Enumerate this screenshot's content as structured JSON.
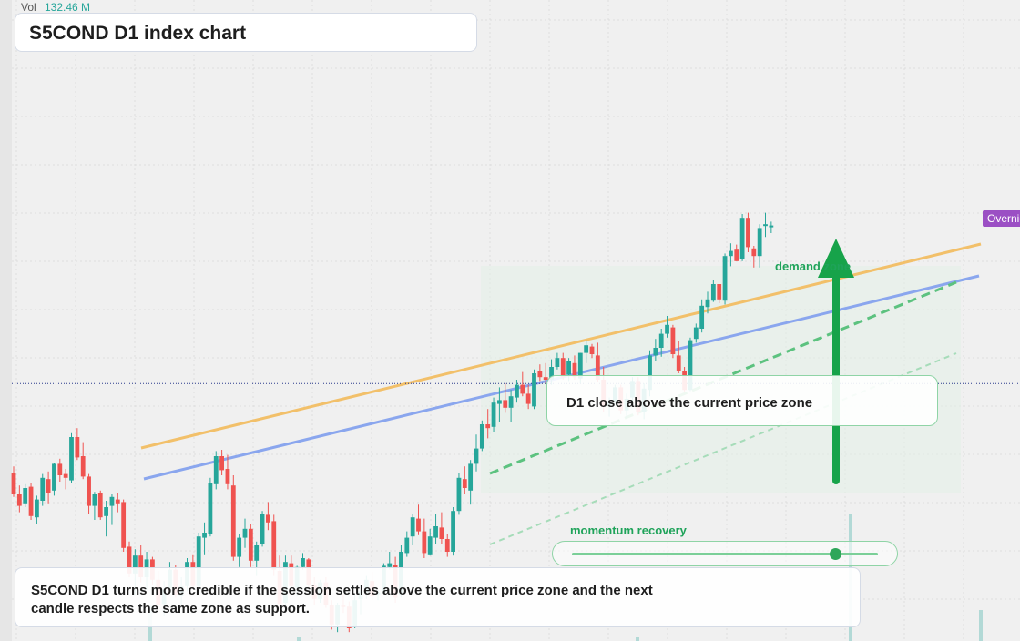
{
  "volume": {
    "label": "Vol",
    "value": "132.46 M"
  },
  "title": "S5COND D1 index chart",
  "callout": {
    "text": "D1 close above the current price zone"
  },
  "demand_label": "demand zone",
  "momentum": {
    "label": "momentum recovery",
    "level": 0.86
  },
  "bottom_note": "S5COND D1 turns more credible if the session settles above the current price zone and the next candle respects the same zone as support.",
  "price_tag": "Overnight",
  "colors": {
    "up": "#26a69a",
    "down": "#ef5350",
    "orange_line": "#f2c06a",
    "blue_line": "#8aa6ee",
    "green_accent": "#1fa35a",
    "tag": "#9b4fc4",
    "overnight_line": "#2b3a8c"
  },
  "chart_data": {
    "type": "candlestick",
    "series": "S5COND",
    "timeframe": "D1",
    "current_price_level": 457,
    "grid": true,
    "candles": [
      [
        387,
        392,
        368,
        370
      ],
      [
        370,
        377,
        356,
        361
      ],
      [
        363,
        378,
        360,
        375
      ],
      [
        376,
        379,
        350,
        353
      ],
      [
        352,
        369,
        347,
        366
      ],
      [
        365,
        386,
        361,
        383
      ],
      [
        382,
        388,
        363,
        371
      ],
      [
        373,
        395,
        369,
        394
      ],
      [
        394,
        398,
        380,
        385
      ],
      [
        386,
        390,
        374,
        383
      ],
      [
        381,
        418,
        379,
        415
      ],
      [
        415,
        422,
        397,
        399
      ],
      [
        400,
        411,
        382,
        384
      ],
      [
        384,
        386,
        355,
        361
      ],
      [
        361,
        372,
        350,
        370
      ],
      [
        371,
        373,
        350,
        352
      ],
      [
        353,
        365,
        337,
        360
      ],
      [
        361,
        370,
        346,
        368
      ],
      [
        366,
        371,
        356,
        363
      ],
      [
        364,
        366,
        325,
        328
      ],
      [
        329,
        333,
        305,
        308
      ],
      [
        308,
        327,
        291,
        322
      ],
      [
        322,
        330,
        301,
        305
      ],
      [
        305,
        325,
        295,
        319
      ],
      [
        319,
        321,
        299,
        303
      ],
      [
        303,
        310,
        279,
        283
      ],
      [
        284,
        302,
        275,
        296
      ],
      [
        296,
        317,
        294,
        311
      ],
      [
        311,
        315,
        289,
        291
      ],
      [
        290,
        305,
        283,
        298
      ],
      [
        298,
        320,
        294,
        317
      ],
      [
        317,
        323,
        296,
        298
      ],
      [
        298,
        340,
        295,
        337
      ],
      [
        336,
        348,
        323,
        340
      ],
      [
        339,
        383,
        337,
        379
      ],
      [
        378,
        404,
        374,
        400
      ],
      [
        400,
        405,
        385,
        389
      ],
      [
        390,
        401,
        374,
        378
      ],
      [
        377,
        385,
        318,
        321
      ],
      [
        321,
        339,
        313,
        336
      ],
      [
        336,
        351,
        328,
        343
      ],
      [
        343,
        347,
        313,
        318
      ],
      [
        318,
        333,
        306,
        330
      ],
      [
        331,
        357,
        329,
        355
      ],
      [
        354,
        364,
        342,
        348
      ],
      [
        349,
        354,
        306,
        311
      ],
      [
        310,
        322,
        280,
        284
      ],
      [
        285,
        322,
        282,
        317
      ],
      [
        316,
        322,
        296,
        298
      ],
      [
        297,
        314,
        290,
        313
      ],
      [
        313,
        324,
        311,
        320
      ],
      [
        319,
        320,
        296,
        299
      ],
      [
        299,
        305,
        283,
        288
      ],
      [
        288,
        303,
        285,
        301
      ],
      [
        301,
        305,
        281,
        283
      ],
      [
        283,
        287,
        264,
        268
      ],
      [
        268,
        285,
        262,
        283
      ],
      [
        283,
        292,
        277,
        282
      ],
      [
        282,
        286,
        262,
        265
      ],
      [
        266,
        291,
        265,
        287
      ],
      [
        288,
        299,
        276,
        294
      ],
      [
        293,
        306,
        288,
        303
      ],
      [
        302,
        309,
        287,
        290
      ],
      [
        292,
        295,
        287,
        293
      ],
      [
        293,
        316,
        292,
        314
      ],
      [
        313,
        325,
        311,
        316
      ],
      [
        315,
        321,
        285,
        289
      ],
      [
        291,
        330,
        289,
        325
      ],
      [
        324,
        341,
        321,
        336
      ],
      [
        337,
        355,
        330,
        352
      ],
      [
        351,
        362,
        338,
        341
      ],
      [
        341,
        351,
        320,
        324
      ],
      [
        323,
        343,
        322,
        337
      ],
      [
        336,
        355,
        331,
        345
      ],
      [
        344,
        356,
        331,
        335
      ],
      [
        335,
        339,
        321,
        325
      ],
      [
        325,
        360,
        322,
        357
      ],
      [
        357,
        387,
        354,
        383
      ],
      [
        382,
        392,
        370,
        375
      ],
      [
        373,
        397,
        362,
        394
      ],
      [
        394,
        417,
        388,
        406
      ],
      [
        406,
        428,
        404,
        425
      ],
      [
        425,
        437,
        414,
        422
      ],
      [
        423,
        446,
        419,
        442
      ],
      [
        441,
        454,
        427,
        444
      ],
      [
        444,
        457,
        434,
        438
      ],
      [
        438,
        452,
        427,
        447
      ],
      [
        446,
        460,
        442,
        456
      ],
      [
        456,
        466,
        447,
        449
      ],
      [
        449,
        456,
        437,
        441
      ],
      [
        439,
        468,
        437,
        465
      ],
      [
        467,
        472,
        459,
        462
      ],
      [
        462,
        473,
        457,
        460
      ],
      [
        460,
        476,
        456,
        470
      ],
      [
        470,
        481,
        468,
        477
      ],
      [
        477,
        481,
        460,
        462
      ],
      [
        464,
        477,
        459,
        475
      ],
      [
        473,
        479,
        460,
        462
      ],
      [
        461,
        481,
        457,
        481
      ],
      [
        481,
        491,
        473,
        487
      ],
      [
        486,
        488,
        477,
        480
      ],
      [
        479,
        489,
        458,
        460
      ],
      [
        460,
        470,
        435,
        439
      ],
      [
        439,
        446,
        431,
        443
      ],
      [
        443,
        456,
        441,
        454
      ],
      [
        454,
        456,
        433,
        436
      ],
      [
        436,
        449,
        430,
        445
      ],
      [
        446,
        462,
        442,
        459
      ],
      [
        459,
        462,
        432,
        435
      ],
      [
        435,
        457,
        429,
        453
      ],
      [
        452,
        483,
        447,
        479
      ],
      [
        479,
        492,
        475,
        485
      ],
      [
        485,
        500,
        478,
        496
      ],
      [
        496,
        510,
        493,
        503
      ],
      [
        501,
        503,
        477,
        480
      ],
      [
        479,
        490,
        465,
        467
      ],
      [
        467,
        470,
        450,
        452
      ],
      [
        452,
        493,
        451,
        491
      ],
      [
        492,
        504,
        489,
        501
      ],
      [
        500,
        523,
        497,
        518
      ],
      [
        517,
        529,
        512,
        523
      ],
      [
        522,
        538,
        521,
        535
      ],
      [
        535,
        535,
        520,
        523
      ],
      [
        522,
        559,
        519,
        557
      ],
      [
        557,
        567,
        549,
        561
      ],
      [
        562,
        566,
        553,
        553
      ],
      [
        555,
        590,
        553,
        587
      ],
      [
        587,
        591,
        560,
        564
      ],
      [
        563,
        565,
        548,
        557
      ],
      [
        557,
        582,
        548,
        579
      ],
      [
        581,
        591,
        572,
        582
      ],
      [
        581,
        584,
        575,
        581
      ]
    ]
  }
}
